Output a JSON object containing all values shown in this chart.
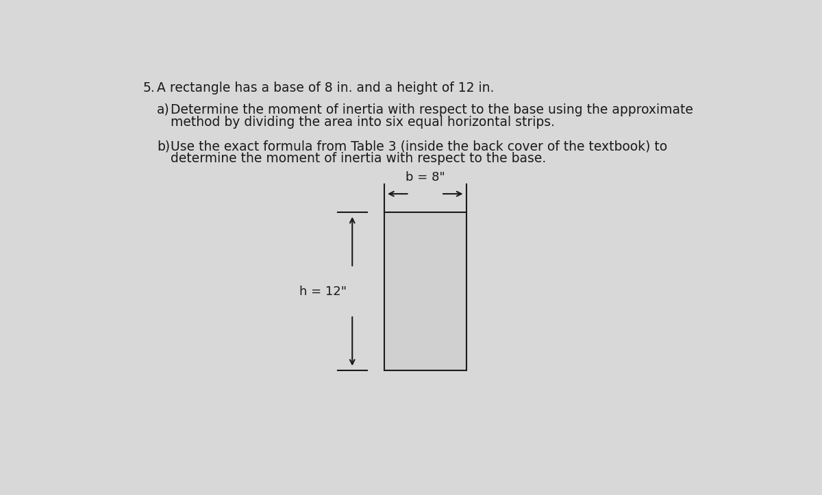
{
  "bg_color": "#d8d8d8",
  "text_color": "#1a1a1a",
  "line_color": "#1a1a1a",
  "line1_num": "5.",
  "line1_text": "A rectangle has a base of 8 in. and a height of 12 in.",
  "line_a_label": "a)",
  "line_a1": "Determine the moment of inertia with respect to the base using the approximate",
  "line_a2": "method by dividing the area into six equal horizontal strips.",
  "line_b_label": "b)",
  "line_b1": "Use the exact formula from Table 3 (inside the back cover of the textbook) to",
  "line_b2": "determine the moment of inertia with respect to the base.",
  "label_b": "b = 8\"",
  "label_h": "h = 12\"",
  "text_fontsize": 13.5,
  "label_fontsize": 13.0
}
